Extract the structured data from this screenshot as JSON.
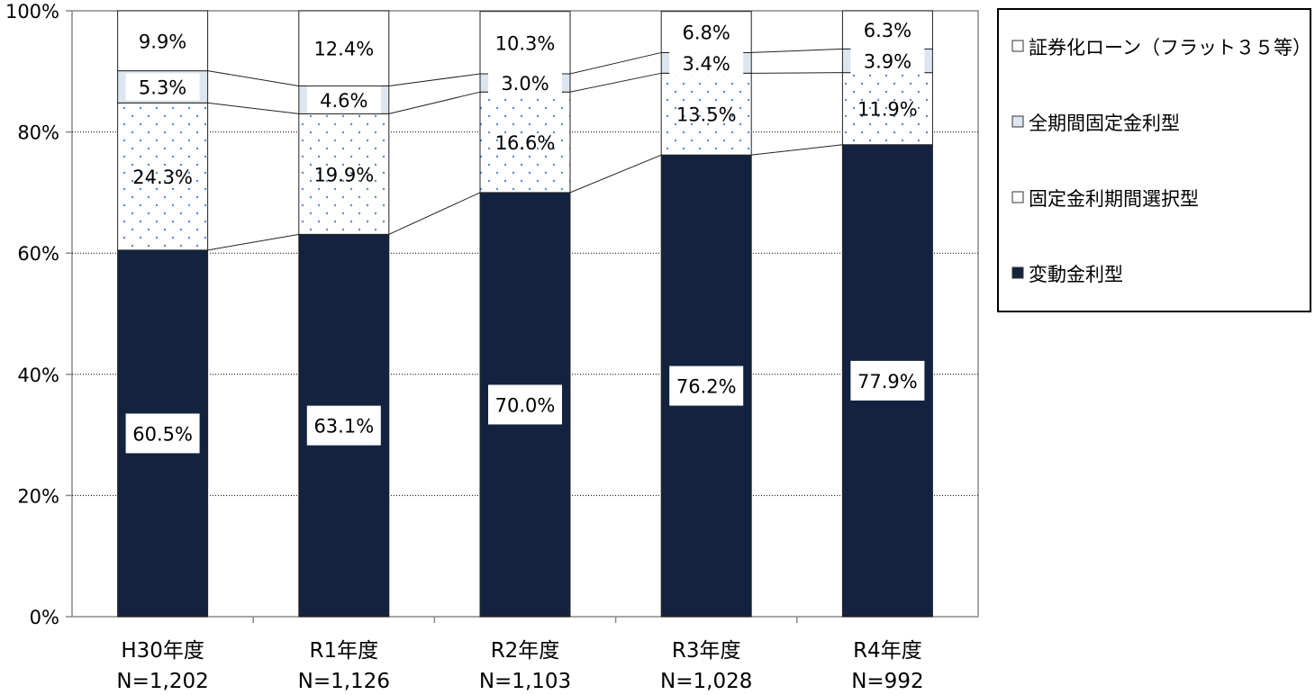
{
  "chart_data": {
    "type": "bar",
    "stacked": true,
    "percent_stacked": true,
    "categories": [
      "H30年度",
      "R1年度",
      "R2年度",
      "R3年度",
      "R4年度"
    ],
    "category_notes": [
      "N=1,202",
      "N=1,126",
      "N=1,103",
      "N=1,028",
      "N=992"
    ],
    "series": [
      {
        "name": "変動金利型",
        "values": [
          60.5,
          63.1,
          70.0,
          76.2,
          77.9
        ],
        "labels": [
          "60.5%",
          "63.1%",
          "70.0%",
          "76.2%",
          "77.9%"
        ],
        "color": "#13233f",
        "pattern": "solid"
      },
      {
        "name": "固定金利期間選択型",
        "values": [
          24.3,
          19.9,
          16.6,
          13.5,
          11.9
        ],
        "labels": [
          "24.3%",
          "19.9%",
          "16.6%",
          "13.5%",
          "11.9%"
        ],
        "color": "#4a8fd8",
        "pattern": "dots"
      },
      {
        "name": "全期間固定金利型",
        "values": [
          5.3,
          4.6,
          3.0,
          3.4,
          3.9
        ],
        "labels": [
          "5.3%",
          "4.6%",
          "3.0%",
          "3.4%",
          "3.9%"
        ],
        "color": "#dce6f1",
        "pattern": "solid"
      },
      {
        "name": "証券化ローン（フラット３５等）",
        "values": [
          9.9,
          12.4,
          10.3,
          6.8,
          6.3
        ],
        "labels": [
          "9.9%",
          "12.4%",
          "10.3%",
          "6.8%",
          "6.3%"
        ],
        "color": "#ffffff",
        "pattern": "solid"
      }
    ],
    "legend_order": [
      3,
      2,
      1,
      0
    ],
    "yticks": [
      "0%",
      "20%",
      "40%",
      "60%",
      "80%",
      "100%"
    ],
    "ylim": [
      0,
      100
    ],
    "grid": true,
    "legend_position": "right",
    "series_lines": true
  }
}
